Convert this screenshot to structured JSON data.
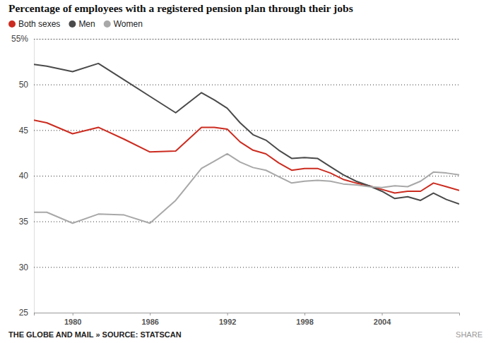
{
  "chart_data": {
    "type": "line",
    "title": "Percentage of employees with a registered pension plan through their jobs",
    "annotations": [
      "THE GLOBE AND MAIL » SOURCE: STATSCAN",
      "SHARE"
    ],
    "x": [
      1977,
      1978,
      1980,
      1982,
      1984,
      1986,
      1988,
      1990,
      1991,
      1992,
      1993,
      1994,
      1995,
      1996,
      1997,
      1998,
      1999,
      2000,
      2001,
      2002,
      2003,
      2004,
      2005,
      2006,
      2007,
      2008,
      2009,
      2010
    ],
    "series": [
      {
        "name": "Both sexes",
        "color": "#cc2b1f",
        "values": [
          46.1,
          45.8,
          44.6,
          45.3,
          44.0,
          42.6,
          42.7,
          45.3,
          45.3,
          45.1,
          43.7,
          42.8,
          42.4,
          41.4,
          40.6,
          40.8,
          40.8,
          40.3,
          39.6,
          39.2,
          38.9,
          38.5,
          38.1,
          38.3,
          38.3,
          39.2,
          38.8,
          38.4
        ]
      },
      {
        "name": "Men",
        "color": "#4a4a4a",
        "values": [
          52.2,
          52.0,
          51.4,
          52.3,
          50.5,
          48.7,
          46.9,
          49.1,
          48.3,
          47.4,
          45.8,
          44.5,
          43.9,
          42.8,
          41.9,
          42.0,
          41.9,
          41.0,
          40.1,
          39.4,
          38.9,
          38.3,
          37.5,
          37.7,
          37.3,
          38.1,
          37.4,
          36.9
        ]
      },
      {
        "name": "Women",
        "color": "#a8a8a8",
        "values": [
          36.0,
          36.0,
          34.8,
          35.8,
          35.7,
          34.8,
          37.3,
          40.8,
          41.6,
          42.4,
          41.5,
          40.9,
          40.6,
          39.9,
          39.2,
          39.4,
          39.5,
          39.4,
          39.1,
          39.0,
          38.8,
          38.7,
          38.9,
          38.8,
          39.4,
          40.4,
          40.3,
          40.1
        ]
      }
    ],
    "xlim": [
      1977,
      2010
    ],
    "xticks": [
      1980,
      1986,
      1992,
      1998,
      2004
    ],
    "ylim": [
      25,
      55
    ],
    "yticks": [
      25,
      30,
      35,
      40,
      45,
      50,
      {
        "value": 55,
        "label": "55%"
      }
    ],
    "grid": true,
    "legend": "top-left"
  }
}
